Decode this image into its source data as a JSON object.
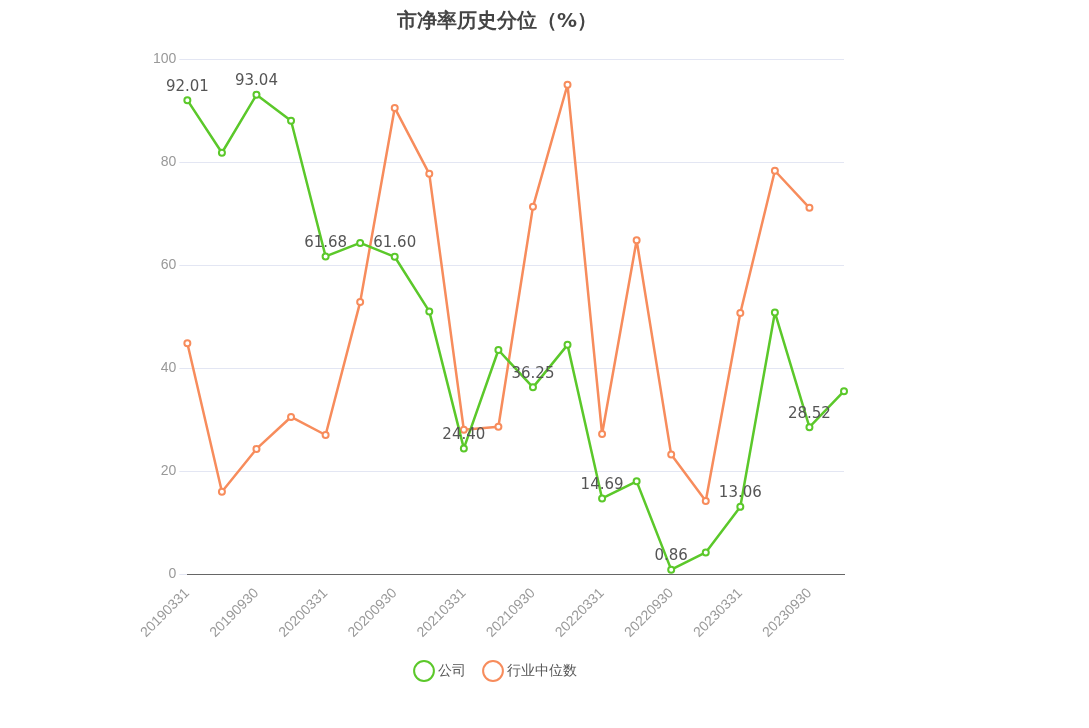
{
  "chart_data": {
    "type": "line",
    "title": "市净率历史分位（%）",
    "categories": [
      "20190331",
      null,
      "20190930",
      null,
      "20200331",
      null,
      "20200930",
      null,
      "20210331",
      null,
      "20210930",
      null,
      "20220331",
      null,
      "20220930",
      null,
      "20230331",
      null,
      "20230930",
      null
    ],
    "series": [
      {
        "name": "公司",
        "color": "#5bc82a",
        "values": [
          92.01,
          81.8,
          93.04,
          88,
          61.68,
          64.3,
          61.6,
          51,
          24.4,
          43.5,
          36.25,
          44.5,
          14.69,
          18,
          0.86,
          4.2,
          13.06,
          50.8,
          28.52,
          35.5
        ],
        "value_labels": [
          "92.01",
          null,
          "93.04",
          null,
          "61.68",
          null,
          "61.60",
          null,
          "24.40",
          null,
          "36.25",
          null,
          "14.69",
          null,
          "0.86",
          null,
          "13.06",
          null,
          "28.52",
          null
        ]
      },
      {
        "name": "行业中位数",
        "color": "#f78c5c",
        "values": [
          44.8,
          16,
          24.3,
          30.5,
          27,
          52.8,
          90.5,
          77.7,
          28,
          28.6,
          71.3,
          95,
          27.2,
          64.8,
          23.2,
          14.2,
          50.7,
          78.3,
          71.1,
          null
        ]
      }
    ],
    "ylim": [
      0,
      100
    ],
    "yticks": [
      0,
      20,
      40,
      60,
      80,
      100
    ],
    "grid": "y",
    "legend": "bottom",
    "marker": "circle",
    "line_style": "solid"
  }
}
